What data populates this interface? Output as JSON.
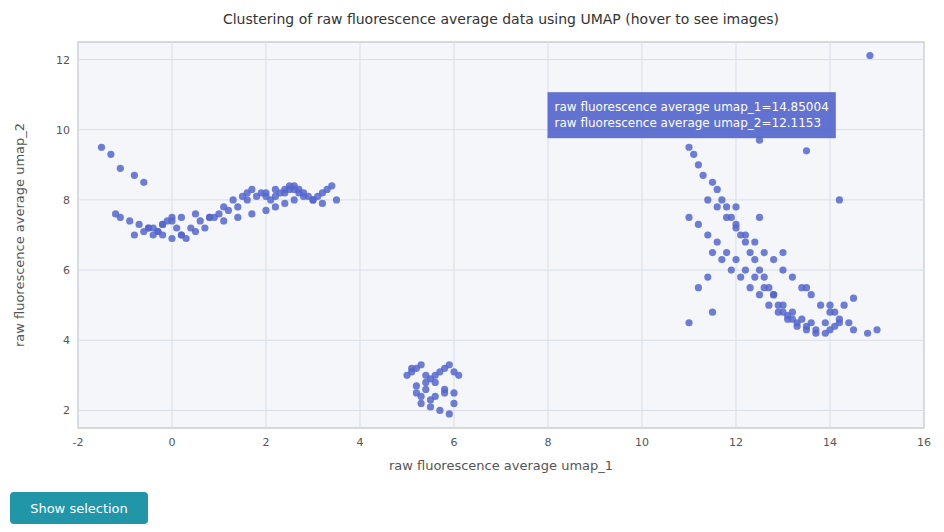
{
  "chart_data": {
    "type": "scatter",
    "title": "Clustering of raw fluorescence average data using UMAP (hover to see images)",
    "x_label": "raw fluorescence average umap_1",
    "y_label": "raw fluorescence average umap_2",
    "xlim": [
      -2,
      16
    ],
    "ylim": [
      1.5,
      12.5
    ],
    "xticks": [
      -2,
      0,
      2,
      4,
      6,
      8,
      10,
      12,
      14,
      16
    ],
    "yticks": [
      2,
      4,
      6,
      8,
      10,
      12
    ],
    "grid": true,
    "color": "#5566cc",
    "annotations": [
      "raw fluorescence average umap_1=14.85004",
      "raw fluorescence average umap_2=12.1153"
    ],
    "button": "Show selection",
    "series": [
      {
        "x": [
          -1.5,
          -1.3,
          -1.1,
          -0.8,
          -0.6,
          -0.5,
          -0.4,
          -0.3,
          -0.2,
          -0.1,
          0.0,
          0.1,
          0.2,
          0.3,
          0.5,
          0.7,
          0.9,
          1.1,
          1.3,
          1.5,
          1.6,
          1.7,
          1.9,
          2.0,
          2.1,
          2.2,
          2.3,
          2.4,
          2.5,
          2.6,
          2.7,
          2.8,
          3.0,
          3.2,
          -0.7,
          -0.9,
          -1.1,
          -1.2,
          -0.5,
          -0.3,
          -0.2,
          0.0,
          0.2,
          0.4,
          0.6,
          0.8,
          1.0,
          1.2,
          1.4,
          1.6,
          1.8,
          2.0,
          2.2,
          2.4,
          2.5,
          2.6,
          2.7,
          2.8,
          2.9,
          3.0,
          3.1,
          3.2,
          3.3,
          3.4,
          3.5,
          -0.8,
          -0.6,
          -0.4,
          -0.2,
          0.0,
          0.2,
          0.5,
          0.8,
          1.1,
          1.4,
          1.7,
          2.0,
          2.2,
          2.4,
          2.6
        ],
        "values": [
          9.5,
          9.3,
          8.9,
          8.7,
          8.5,
          7.2,
          7.0,
          7.1,
          7.3,
          7.4,
          7.5,
          7.2,
          7.0,
          6.9,
          7.1,
          7.2,
          7.5,
          7.8,
          8.0,
          8.1,
          8.2,
          8.3,
          8.2,
          8.1,
          8.0,
          8.1,
          8.2,
          8.3,
          8.4,
          8.3,
          8.2,
          8.1,
          8.0,
          7.9,
          7.3,
          7.4,
          7.5,
          7.6,
          7.2,
          7.1,
          7.0,
          6.9,
          7.0,
          7.2,
          7.4,
          7.5,
          7.6,
          7.7,
          7.8,
          8.0,
          8.1,
          8.2,
          8.3,
          8.2,
          8.3,
          8.4,
          8.3,
          8.2,
          8.1,
          8.0,
          8.1,
          8.2,
          8.3,
          8.4,
          8.0,
          7.0,
          7.1,
          7.2,
          7.3,
          7.4,
          7.5,
          7.6,
          7.5,
          7.4,
          7.5,
          7.6,
          7.7,
          7.8,
          7.9,
          8.0
        ]
      },
      {
        "x": [
          5.0,
          5.1,
          5.2,
          5.3,
          5.4,
          5.5,
          5.6,
          5.7,
          5.8,
          5.9,
          6.0,
          6.1,
          5.2,
          5.4,
          5.6,
          5.8,
          5.3,
          5.5,
          5.7,
          5.9,
          6.0,
          5.1,
          5.4,
          5.6,
          5.2,
          5.8,
          6.0,
          5.3,
          5.5
        ],
        "values": [
          3.0,
          3.1,
          3.2,
          3.3,
          2.8,
          2.9,
          3.0,
          3.1,
          3.2,
          3.3,
          3.1,
          3.0,
          2.5,
          2.6,
          2.4,
          2.5,
          2.2,
          2.1,
          2.0,
          1.9,
          2.2,
          3.2,
          3.0,
          2.8,
          2.7,
          2.6,
          2.5,
          2.4,
          2.3
        ]
      },
      {
        "x": [
          11.0,
          11.1,
          11.2,
          11.3,
          11.5,
          11.6,
          11.7,
          11.8,
          11.9,
          12.0,
          12.1,
          12.2,
          12.3,
          12.4,
          12.5,
          12.6,
          12.7,
          12.8,
          12.9,
          13.0,
          13.1,
          13.2,
          13.3,
          13.5,
          13.7,
          13.9,
          14.0,
          14.1,
          14.2,
          14.5,
          14.8,
          15.0,
          11.4,
          11.6,
          11.8,
          12.0,
          12.2,
          12.4,
          12.6,
          12.8,
          13.0,
          13.2,
          13.4,
          13.6,
          13.8,
          14.0,
          14.2,
          14.4,
          11.0,
          11.2,
          11.4,
          11.6,
          11.8,
          12.0,
          12.2,
          12.4,
          12.6,
          12.8,
          13.0,
          13.2,
          13.4,
          13.6,
          11.5,
          11.7,
          11.9,
          12.1,
          12.3,
          12.5,
          12.7,
          12.9,
          13.1,
          13.3,
          13.5,
          13.7,
          13.9,
          14.1,
          14.3,
          14.5,
          11.2,
          11.4,
          12.0,
          12.5,
          13.0,
          13.5,
          14.0,
          11.0,
          11.5,
          12.5,
          13.5,
          14.2
        ],
        "values": [
          9.5,
          9.3,
          9.0,
          8.7,
          8.5,
          8.3,
          8.0,
          7.8,
          7.5,
          7.2,
          7.0,
          6.8,
          6.5,
          6.3,
          6.0,
          5.8,
          5.5,
          5.3,
          5.0,
          4.8,
          4.7,
          4.6,
          4.5,
          4.4,
          4.3,
          4.2,
          4.3,
          4.4,
          4.5,
          4.3,
          4.2,
          4.3,
          8.0,
          7.8,
          7.5,
          7.3,
          7.0,
          6.8,
          6.5,
          6.3,
          6.0,
          5.8,
          5.5,
          5.3,
          5.0,
          4.8,
          4.6,
          4.5,
          7.5,
          7.3,
          7.0,
          6.8,
          6.5,
          6.3,
          6.0,
          5.8,
          5.5,
          5.3,
          5.0,
          4.8,
          4.6,
          4.5,
          6.5,
          6.3,
          6.0,
          5.8,
          5.5,
          5.3,
          5.0,
          4.8,
          4.6,
          4.4,
          4.3,
          4.2,
          4.5,
          4.8,
          5.0,
          5.2,
          5.5,
          5.8,
          7.8,
          7.5,
          6.5,
          5.5,
          5.0,
          4.5,
          4.8,
          9.7,
          9.4,
          8.0
        ]
      },
      {
        "x": [
          14.85004
        ],
        "values": [
          12.1153
        ]
      }
    ]
  }
}
